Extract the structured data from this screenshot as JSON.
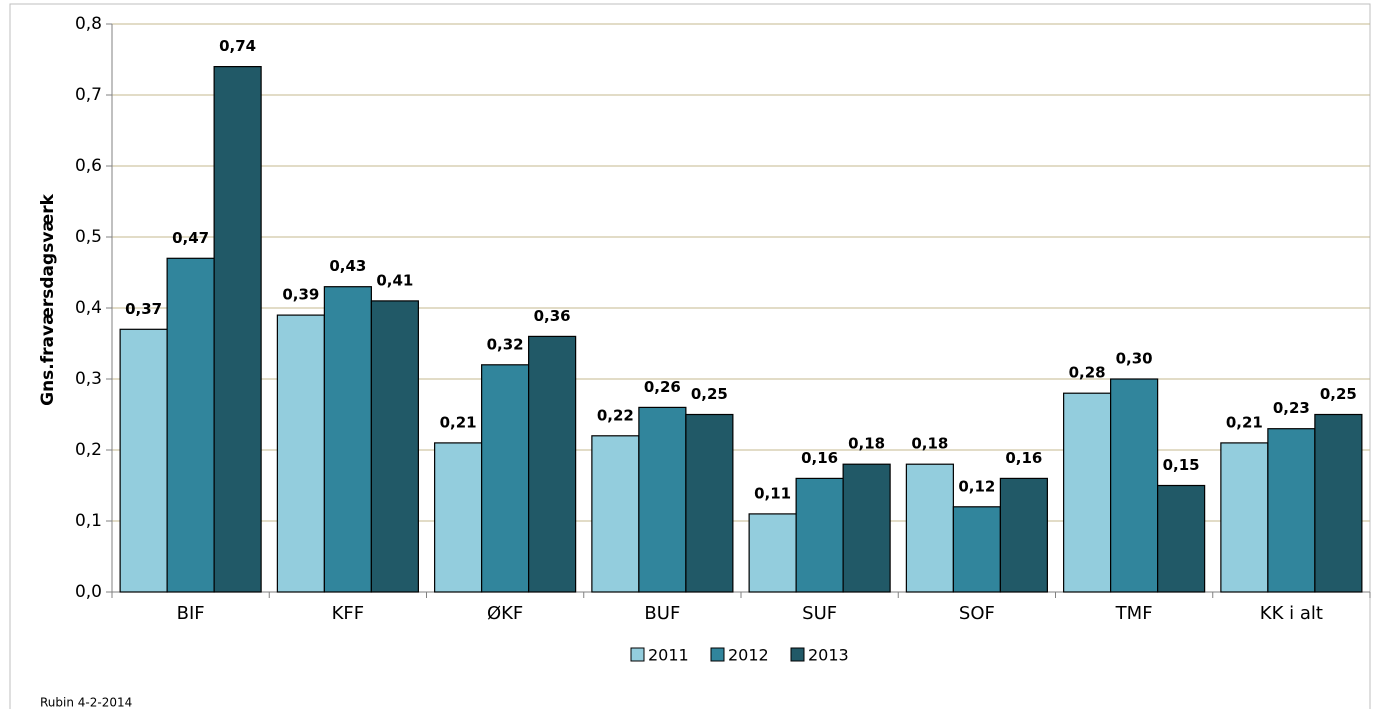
{
  "chart_data": {
    "type": "bar",
    "y_label": "Gns.fraværsdagsværk",
    "footnote": "Rubin 4-2-2014",
    "categories": [
      "BIF",
      "KFF",
      "ØKF",
      "BUF",
      "SUF",
      "SOF",
      "TMF",
      "KK i alt"
    ],
    "series": [
      {
        "name": "2011",
        "color": "#93cddd",
        "values": [
          0.37,
          0.39,
          0.21,
          0.22,
          0.11,
          0.18,
          0.28,
          0.21
        ],
        "value_labels": [
          "0,37",
          "0,39",
          "0,21",
          "0,22",
          "0,11",
          "0,18",
          "0,28",
          "0,21"
        ]
      },
      {
        "name": "2012",
        "color": "#31859c",
        "values": [
          0.47,
          0.43,
          0.32,
          0.26,
          0.16,
          0.12,
          0.3,
          0.23
        ],
        "value_labels": [
          "0,47",
          "0,43",
          "0,32",
          "0,26",
          "0,16",
          "0,12",
          "0,30",
          "0,23"
        ]
      },
      {
        "name": "2013",
        "color": "#215967",
        "values": [
          0.74,
          0.41,
          0.36,
          0.25,
          0.18,
          0.16,
          0.15,
          0.25
        ],
        "value_labels": [
          "0,74",
          "0,41",
          "0,36",
          "0,25",
          "0,18",
          "0,16",
          "0,15",
          "0,25"
        ]
      }
    ],
    "ylim": [
      0,
      0.8
    ],
    "yticks": [
      {
        "value": 0,
        "label": "0,0"
      },
      {
        "value": 0.1,
        "label": "0,1"
      },
      {
        "value": 0.2,
        "label": "0,2"
      },
      {
        "value": 0.3,
        "label": "0,3"
      },
      {
        "value": 0.4,
        "label": "0,4"
      },
      {
        "value": 0.5,
        "label": "0,5"
      },
      {
        "value": 0.6,
        "label": "0,6"
      },
      {
        "value": 0.7,
        "label": "0,7"
      },
      {
        "value": 0.8,
        "label": "0,8"
      }
    ],
    "grid": true,
    "legend": "bottom"
  }
}
